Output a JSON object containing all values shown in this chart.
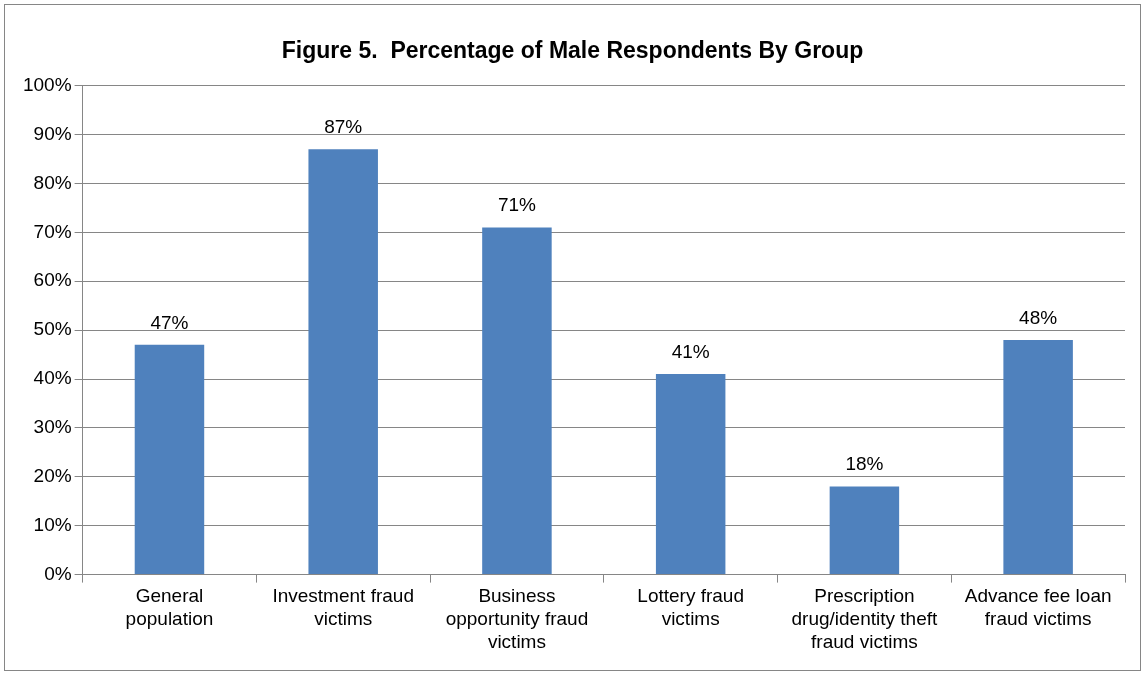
{
  "chart_data": {
    "type": "bar",
    "title": "Figure 5.  Percentage of Male Respondents By Group",
    "categories": [
      "General population",
      "Investment fraud victims",
      "Business opportunity fraud victims",
      "Lottery fraud victims",
      "Prescription drug/identity theft fraud victims",
      "Advance fee loan fraud victims"
    ],
    "values": [
      47,
      87,
      71,
      41,
      18,
      48
    ],
    "value_labels": [
      "47%",
      "87%",
      "71%",
      "41%",
      "18%",
      "48%"
    ],
    "color": "#4f81bd",
    "ylim": [
      0,
      100
    ],
    "yticks": [
      {
        "value": 0,
        "label": "0%"
      },
      {
        "value": 10,
        "label": "10%"
      },
      {
        "value": 20,
        "label": "20%"
      },
      {
        "value": 30,
        "label": "30%"
      },
      {
        "value": 40,
        "label": "40%"
      },
      {
        "value": 50,
        "label": "50%"
      },
      {
        "value": 60,
        "label": "60%"
      },
      {
        "value": 70,
        "label": "70%"
      },
      {
        "value": 80,
        "label": "80%"
      },
      {
        "value": 90,
        "label": "90%"
      },
      {
        "value": 100,
        "label": "100%"
      }
    ],
    "grid": "y",
    "legend": false
  }
}
